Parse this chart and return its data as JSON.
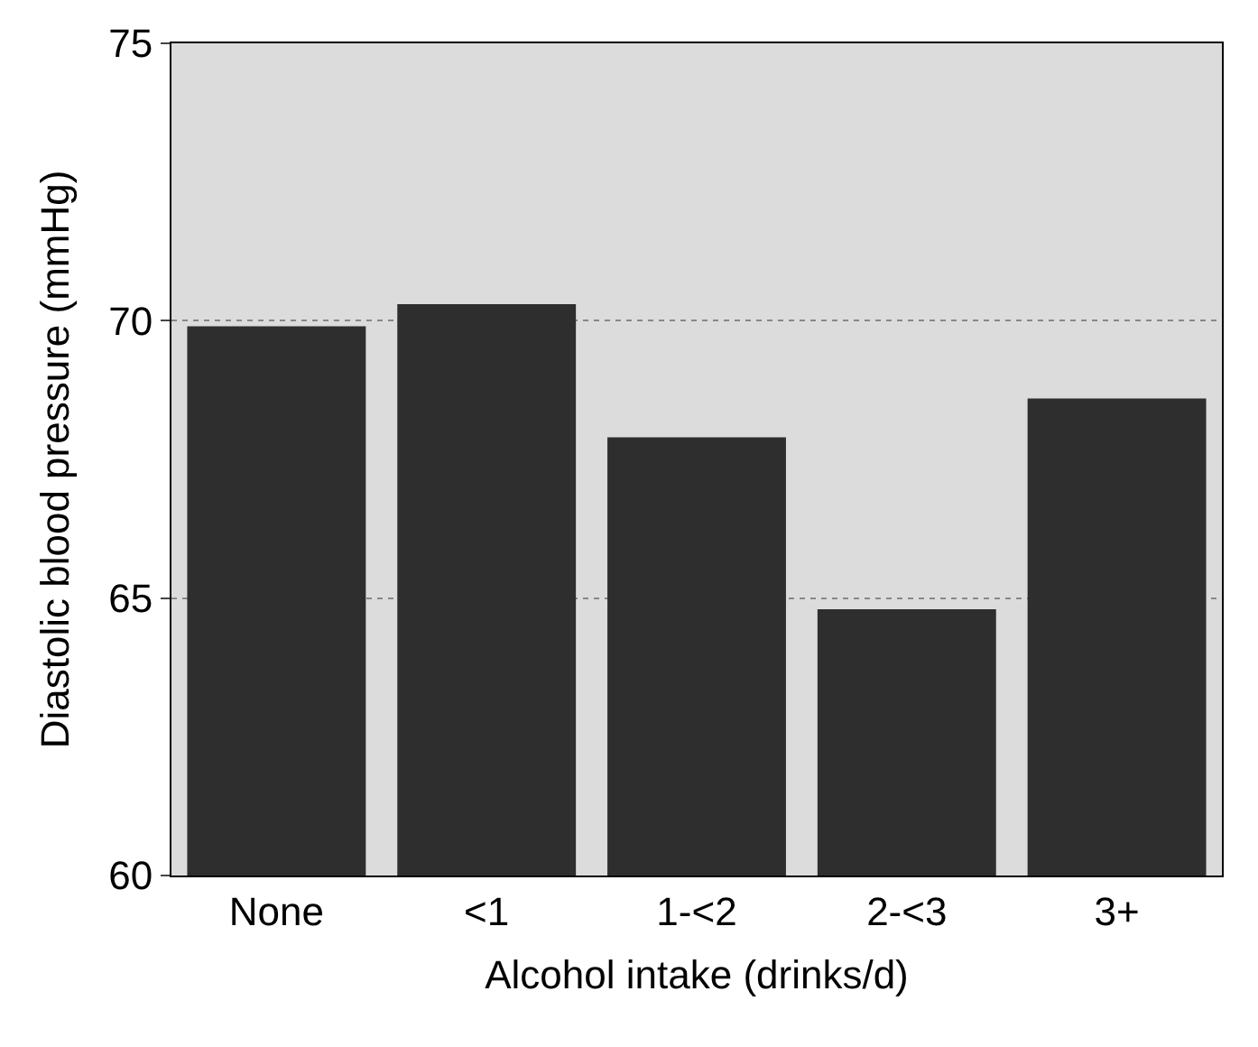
{
  "chart_data": {
    "type": "bar",
    "xlabel": "Alcohol intake (drinks/d)",
    "ylabel": "Diastolic blood pressure (mmHg)",
    "categories": [
      "None",
      "<1",
      "1-<2",
      "2-<3",
      "3+"
    ],
    "values": [
      69.9,
      70.3,
      67.9,
      64.8,
      68.6
    ],
    "color": "#2e2e2e",
    "ylim": [
      60,
      75
    ],
    "yticks": [
      60,
      65,
      70,
      75
    ],
    "grid": "y"
  }
}
